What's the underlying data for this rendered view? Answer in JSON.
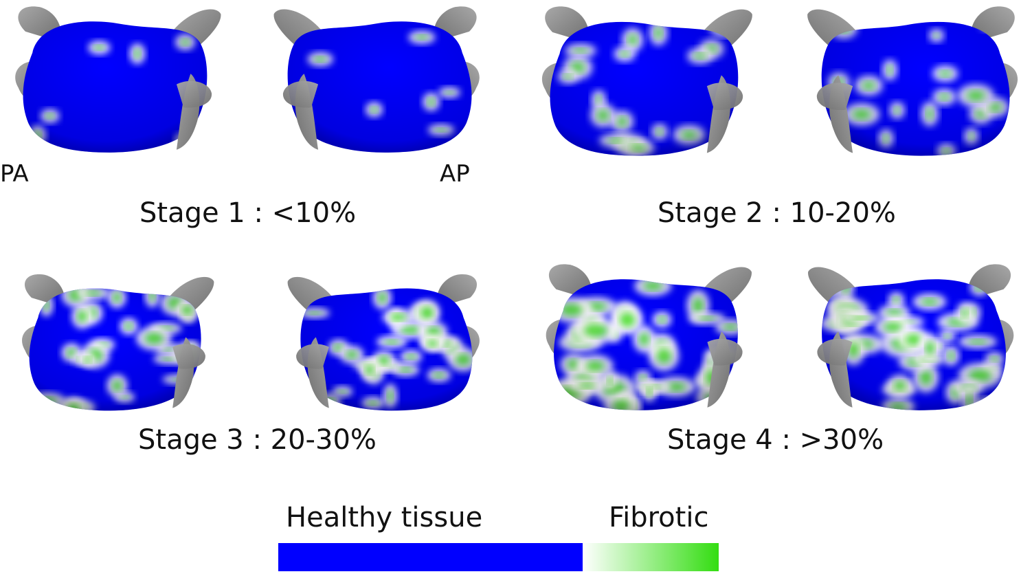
{
  "views": {
    "posterior_anterior": "PA",
    "anterior_posterior": "AP"
  },
  "stages": [
    {
      "label": "Stage 1 : <10%",
      "fibrosis_level": 0.05
    },
    {
      "label": "Stage 2 : 10-20%",
      "fibrosis_level": 0.15
    },
    {
      "label": "Stage 3 : 20-30%",
      "fibrosis_level": 0.25
    },
    {
      "label": "Stage 4 : >30%",
      "fibrosis_level": 0.35
    }
  ],
  "legend": {
    "healthy_label": "Healthy tissue",
    "fibrotic_label": "Fibrotic",
    "healthy_color": "#0000ff",
    "fibrotic_color": "#33dd11",
    "vein_color": "#8c8c8c"
  }
}
